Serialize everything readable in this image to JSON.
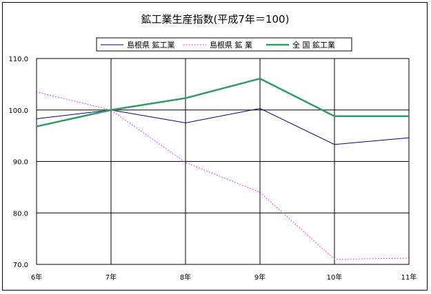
{
  "chart_data": {
    "type": "line",
    "title": "鉱工業生産指数(平成7年＝100)",
    "categories": [
      "6年",
      "7年",
      "8年",
      "9年",
      "10年",
      "11年"
    ],
    "ylim": [
      70.0,
      110.0
    ],
    "yticks": [
      "70.0",
      "80.0",
      "90.0",
      "100.0",
      "110.0"
    ],
    "grid": true,
    "legend_position": "top",
    "series": [
      {
        "name": "島根県 鉱工業",
        "color": "#000080",
        "style": "solid",
        "values": [
          98.3,
          100.0,
          97.5,
          100.3,
          93.3,
          94.6
        ]
      },
      {
        "name": "島根県 鉱 業",
        "color": "#ff00ff",
        "style": "dotted",
        "values": [
          103.5,
          100.0,
          89.8,
          84.0,
          71.0,
          71.2
        ]
      },
      {
        "name": "全 国 鉱工業",
        "color": "#339966",
        "style": "thick",
        "values": [
          96.8,
          100.0,
          102.3,
          106.1,
          98.8,
          98.8
        ]
      }
    ]
  }
}
